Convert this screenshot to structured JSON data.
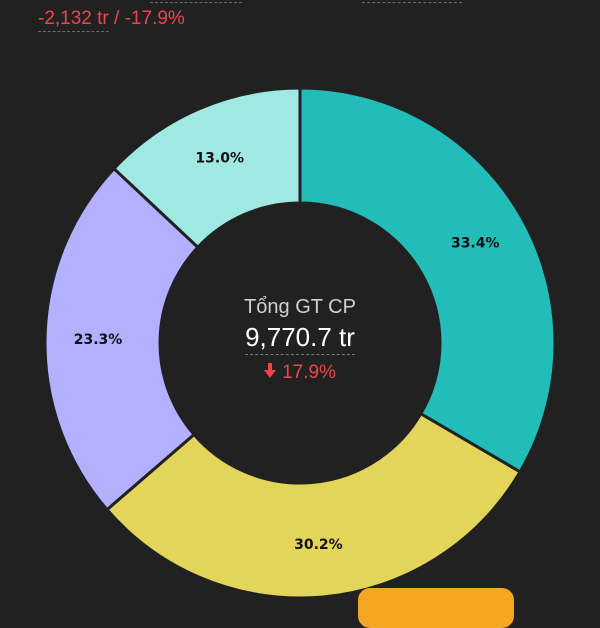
{
  "header": {
    "change_value": "-2,132 tr",
    "separator": "/",
    "change_percent": "-17.9%"
  },
  "center": {
    "title": "Tổng GT CP",
    "total": "9,770.7 tr",
    "change": "17.9%"
  },
  "colors": {
    "background": "#212121",
    "negative": "#f0444d",
    "slice_teal": "#22bdb8",
    "slice_yellow": "#e3d55a",
    "slice_lavender": "#b3b0ff",
    "slice_light_teal": "#a0e8e2",
    "divider": "#212121"
  },
  "chart_data": {
    "type": "pie",
    "donut": true,
    "values": [
      33.4,
      30.2,
      23.3,
      13.0
    ],
    "labels": [
      "33.4%",
      "30.2%",
      "23.3%",
      "13.0%"
    ],
    "colors": [
      "#22bdb8",
      "#e3d55a",
      "#b3b0ff",
      "#a0e8e2"
    ],
    "start_angle_deg": 0,
    "direction": "clockwise"
  }
}
